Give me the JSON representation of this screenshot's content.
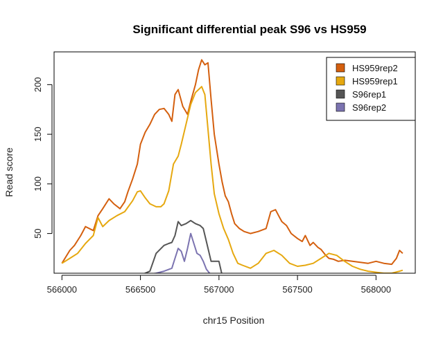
{
  "chart_data": {
    "type": "line",
    "title": "Significant differential peak S96 vs HS959",
    "xlabel": "chr15 Position",
    "ylabel": "Read score",
    "xlim": [
      565950,
      568250
    ],
    "ylim": [
      10,
      233
    ],
    "x_ticks": [
      566000,
      566500,
      567000,
      567500,
      568000
    ],
    "y_ticks": [
      50,
      100,
      150,
      200
    ],
    "legend_position": "top-right",
    "series": [
      {
        "name": "HS959rep2",
        "color": "#D45F0E",
        "x": [
          566000,
          566050,
          566080,
          566120,
          566150,
          566200,
          566230,
          566260,
          566300,
          566330,
          566370,
          566400,
          566420,
          566450,
          566480,
          566500,
          566530,
          566560,
          566590,
          566620,
          566650,
          566680,
          566700,
          566720,
          566740,
          566770,
          566800,
          566820,
          566850,
          566870,
          566890,
          566910,
          566930,
          566950,
          566970,
          567000,
          567020,
          567040,
          567060,
          567080,
          567100,
          567130,
          567160,
          567200,
          567250,
          567300,
          567330,
          567360,
          567380,
          567400,
          567430,
          567460,
          567500,
          567530,
          567550,
          567580,
          567600,
          567630,
          567650,
          567680,
          567700,
          567730,
          567760,
          567800,
          567850,
          567900,
          567950,
          568000,
          568050,
          568100,
          568130,
          568150,
          568170
        ],
        "y": [
          20,
          33,
          38,
          48,
          57,
          53,
          68,
          75,
          85,
          80,
          75,
          82,
          92,
          105,
          120,
          140,
          152,
          160,
          170,
          175,
          176,
          170,
          163,
          190,
          195,
          178,
          170,
          183,
          200,
          215,
          225,
          220,
          222,
          185,
          150,
          120,
          102,
          88,
          82,
          70,
          60,
          55,
          52,
          50,
          52,
          55,
          72,
          74,
          68,
          62,
          58,
          50,
          45,
          42,
          48,
          38,
          41,
          36,
          34,
          28,
          25,
          24,
          22,
          23,
          22,
          21,
          20,
          22,
          20,
          19,
          25,
          33,
          30
        ]
      },
      {
        "name": "HS959rep1",
        "color": "#E6A80F",
        "x": [
          566000,
          566050,
          566100,
          566150,
          566200,
          566230,
          566260,
          566300,
          566350,
          566400,
          566450,
          566480,
          566500,
          566530,
          566560,
          566600,
          566630,
          566650,
          566680,
          566710,
          566740,
          566760,
          566790,
          566820,
          566850,
          566870,
          566890,
          566910,
          566930,
          566950,
          566970,
          567000,
          567030,
          567060,
          567090,
          567120,
          567150,
          567200,
          567250,
          567300,
          567350,
          567400,
          567450,
          567500,
          567550,
          567600,
          567650,
          567700,
          567750,
          567800,
          567850,
          567900,
          567950,
          568000,
          568050,
          568100,
          568150,
          568170
        ],
        "y": [
          20,
          25,
          30,
          40,
          48,
          66,
          57,
          63,
          68,
          72,
          83,
          92,
          93,
          86,
          80,
          77,
          77,
          80,
          93,
          120,
          128,
          140,
          160,
          180,
          192,
          195,
          198,
          190,
          155,
          120,
          90,
          70,
          55,
          44,
          30,
          20,
          18,
          15,
          20,
          30,
          33,
          28,
          20,
          17,
          18,
          20,
          25,
          30,
          28,
          22,
          17,
          14,
          12,
          11,
          10,
          10,
          12,
          13
        ]
      },
      {
        "name": "S96rep1",
        "color": "#555555",
        "x": [
          566500,
          566560,
          566600,
          566650,
          566680,
          566700,
          566720,
          566740,
          566760,
          566790,
          566820,
          566850,
          566880,
          566900,
          566920,
          566950,
          567000,
          567020
        ],
        "y": [
          8,
          12,
          30,
          38,
          40,
          41,
          48,
          62,
          58,
          60,
          63,
          60,
          58,
          55,
          42,
          22,
          22,
          8
        ]
      },
      {
        "name": "S96rep2",
        "color": "#7B73B0",
        "x": [
          566500,
          566560,
          566600,
          566650,
          566700,
          566720,
          566740,
          566760,
          566780,
          566800,
          566820,
          566840,
          566860,
          566880,
          566900,
          566920,
          566940,
          566960
        ],
        "y": [
          8,
          9,
          10,
          12,
          15,
          25,
          35,
          32,
          22,
          35,
          50,
          40,
          30,
          28,
          22,
          14,
          10,
          8
        ]
      }
    ]
  }
}
